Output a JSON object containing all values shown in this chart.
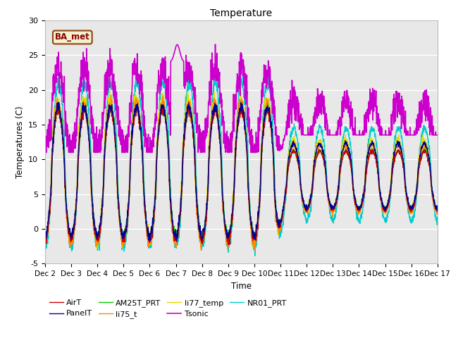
{
  "title": "Temperature",
  "xlabel": "Time",
  "ylabel": "Temperatures (C)",
  "ylim": [
    -5,
    30
  ],
  "xlim": [
    0,
    15
  ],
  "xtick_labels": [
    "Dec 2",
    "Dec 3",
    "Dec 4",
    "Dec 5",
    "Dec 6",
    "Dec 7",
    "Dec 8",
    "Dec 9",
    "Dec 10",
    "Dec 11",
    "Dec 12",
    "Dec 13",
    "Dec 14",
    "Dec 15",
    "Dec 16",
    "Dec 17"
  ],
  "xtick_positions": [
    0,
    1,
    2,
    3,
    4,
    5,
    6,
    7,
    8,
    9,
    10,
    11,
    12,
    13,
    14,
    15
  ],
  "ytick_positions": [
    -5,
    0,
    5,
    10,
    15,
    20,
    25,
    30
  ],
  "annotation_text": "BA_met",
  "background_color": "#e8e8e8",
  "series": {
    "AirT": {
      "color": "#cc0000",
      "lw": 1.0
    },
    "PanelT": {
      "color": "#000099",
      "lw": 1.0
    },
    "AM25T_PRT": {
      "color": "#00cc00",
      "lw": 1.0
    },
    "li75_t": {
      "color": "#ff8800",
      "lw": 1.0
    },
    "li77_temp": {
      "color": "#dddd00",
      "lw": 1.0
    },
    "Tsonic": {
      "color": "#cc00cc",
      "lw": 1.2
    },
    "NR01_PRT": {
      "color": "#00cccc",
      "lw": 1.0
    }
  }
}
